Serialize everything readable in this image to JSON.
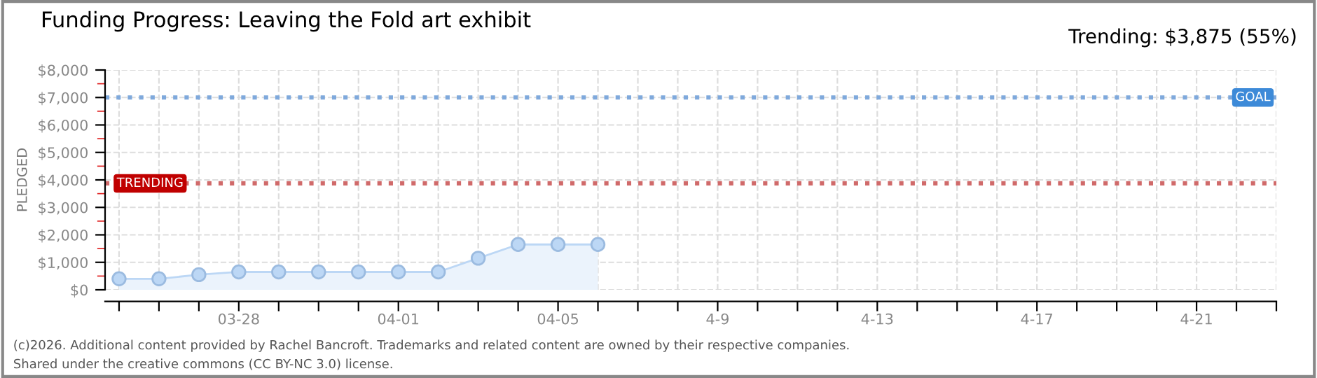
{
  "chart_data": {
    "type": "area",
    "title": "Funding Progress: Leaving the Fold art exhibit",
    "ylabel": "PLEDGED",
    "categories": [
      null,
      null,
      null,
      "03-28",
      null,
      null,
      null,
      "04-01",
      null,
      null,
      null,
      "04-05",
      null,
      null,
      null,
      "4-9",
      null,
      null,
      null,
      "4-13",
      null,
      null,
      null,
      "4-17",
      null,
      null,
      null,
      "4-21",
      null,
      null
    ],
    "series": [
      {
        "color": "#bcd7f5",
        "values": [
          400,
          400,
          550,
          650,
          650,
          650,
          650,
          650,
          650,
          1150,
          1650,
          1650,
          1650,
          null,
          null,
          null,
          null,
          null,
          null,
          null,
          null,
          null,
          null,
          null,
          null,
          null,
          null,
          null,
          null,
          null
        ]
      }
    ],
    "marker": "circle",
    "ylim": [
      0,
      8000
    ],
    "yticks": [
      {
        "value": 0,
        "label": "$0"
      },
      {
        "value": 1000,
        "label": "$1,000"
      },
      {
        "value": 2000,
        "label": "$2,000"
      },
      {
        "value": 3000,
        "label": "$3,000"
      },
      {
        "value": 4000,
        "label": "$4,000"
      },
      {
        "value": 5000,
        "label": "$5,000"
      },
      {
        "value": 6000,
        "label": "$6,000"
      },
      {
        "value": 7000,
        "label": "$7,000"
      },
      {
        "value": 8000,
        "label": "$8,000"
      }
    ],
    "grid": true,
    "ref_lines": [
      {
        "axis": "y",
        "value": 7000,
        "label": "GOAL",
        "color": "#7fa9dc",
        "line_style": "dotted"
      },
      {
        "axis": "y",
        "value": 3875,
        "label": "TRENDING",
        "color": "#d06a6a",
        "line_style": "dotted"
      }
    ],
    "annotations": [
      "Trending: $3,875 (55%)",
      "(c)2026. Additional content provided by Rachel Bancroft. Trademarks and related content are owned by their respective companies.",
      "Shared under the creative commons (CC BY-NC 3.0) license."
    ]
  }
}
